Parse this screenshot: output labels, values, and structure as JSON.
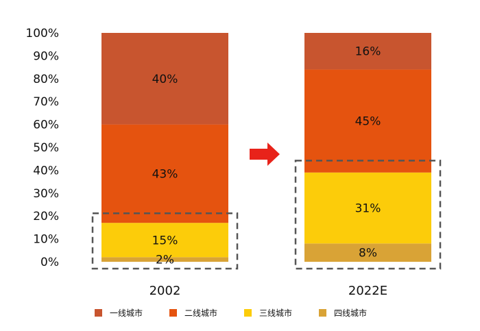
{
  "chart_data": {
    "type": "bar",
    "stacked": true,
    "categories": [
      "2002",
      "2022E"
    ],
    "series": [
      {
        "name": "四线城市",
        "color": "#D9A336",
        "values": [
          2,
          8
        ]
      },
      {
        "name": "三线城市",
        "color": "#FCCC0A",
        "values": [
          15,
          31
        ]
      },
      {
        "name": "二线城市",
        "color": "#E5530F",
        "values": [
          43,
          45
        ]
      },
      {
        "name": "一线城市",
        "color": "#C8552F",
        "values": [
          40,
          16
        ]
      }
    ],
    "data_labels": [
      [
        "2%",
        "15%",
        "43%",
        "40%"
      ],
      [
        "8%",
        "31%",
        "45%",
        "16%"
      ]
    ],
    "y_ticks": [
      "0%",
      "10%",
      "20%",
      "30%",
      "40%",
      "50%",
      "60%",
      "70%",
      "80%",
      "90%",
      "100%"
    ],
    "ylim": [
      0,
      100
    ],
    "legend": [
      "一线城市",
      "二线城市",
      "三线城市",
      "四线城市"
    ],
    "legend_colors": [
      "#C8552F",
      "#E5530F",
      "#FCCC0A",
      "#D9A336"
    ],
    "legend_position": "bottom",
    "grid": false,
    "annotations": {
      "arrow_color": "#E8231A",
      "highlight_boxes": [
        {
          "category": "2002",
          "from": 0,
          "to": 20
        },
        {
          "category": "2022E",
          "from": 0,
          "to": 43
        }
      ]
    }
  }
}
